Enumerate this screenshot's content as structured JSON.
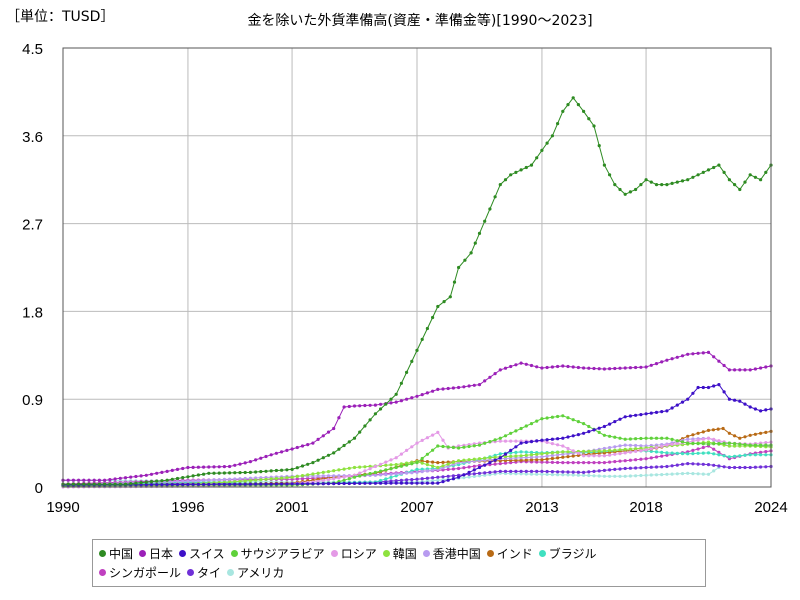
{
  "unit": "［単位：TUSD］",
  "chart_data": {
    "type": "line",
    "title": "金を除いた外貨準備高(資産・準備金等)[1990～2023]",
    "xlabel": "",
    "ylabel": "TUSD",
    "xlim": [
      1990,
      2024
    ],
    "ylim": [
      0,
      4.5
    ],
    "xticks": [
      1990,
      1996,
      2001,
      2007,
      2013,
      2018,
      2024
    ],
    "yticks": [
      0,
      0.9,
      1.8,
      2.7,
      3.6,
      4.5
    ],
    "ytick_labels": [
      "0",
      "0.9",
      "1.8",
      "2.7",
      "3.6",
      "4.5"
    ],
    "grid": true,
    "legend_position": "bottom",
    "series": [
      {
        "name": "中国",
        "color": "#2e8b22",
        "points": [
          [
            1990,
            0.03
          ],
          [
            1993,
            0.03
          ],
          [
            1995,
            0.07
          ],
          [
            1997,
            0.14
          ],
          [
            1999,
            0.15
          ],
          [
            2001,
            0.18
          ],
          [
            2002,
            0.25
          ],
          [
            2003,
            0.35
          ],
          [
            2004,
            0.5
          ],
          [
            2005,
            0.75
          ],
          [
            2006,
            0.95
          ],
          [
            2007,
            1.4
          ],
          [
            2008,
            1.85
          ],
          [
            2008.6,
            1.95
          ],
          [
            2009,
            2.25
          ],
          [
            2009.6,
            2.4
          ],
          [
            2010,
            2.6
          ],
          [
            2011,
            3.1
          ],
          [
            2011.5,
            3.2
          ],
          [
            2012,
            3.25
          ],
          [
            2012.5,
            3.3
          ],
          [
            2013,
            3.45
          ],
          [
            2013.5,
            3.6
          ],
          [
            2014,
            3.85
          ],
          [
            2014.5,
            3.99
          ],
          [
            2015,
            3.85
          ],
          [
            2015.5,
            3.7
          ],
          [
            2016,
            3.3
          ],
          [
            2016.5,
            3.1
          ],
          [
            2017,
            3.0
          ],
          [
            2017.5,
            3.05
          ],
          [
            2018,
            3.15
          ],
          [
            2018.5,
            3.1
          ],
          [
            2019,
            3.1
          ],
          [
            2020,
            3.15
          ],
          [
            2021,
            3.25
          ],
          [
            2021.5,
            3.3
          ],
          [
            2022,
            3.15
          ],
          [
            2022.5,
            3.05
          ],
          [
            2023,
            3.2
          ],
          [
            2023.5,
            3.15
          ],
          [
            2024,
            3.3
          ]
        ]
      },
      {
        "name": "日本",
        "color": "#9b20b8",
        "points": [
          [
            1990,
            0.07
          ],
          [
            1992,
            0.07
          ],
          [
            1994,
            0.12
          ],
          [
            1996,
            0.2
          ],
          [
            1998,
            0.21
          ],
          [
            1999,
            0.26
          ],
          [
            2000,
            0.33
          ],
          [
            2001,
            0.39
          ],
          [
            2002,
            0.45
          ],
          [
            2003,
            0.6
          ],
          [
            2003.5,
            0.82
          ],
          [
            2004,
            0.83
          ],
          [
            2005,
            0.84
          ],
          [
            2006,
            0.87
          ],
          [
            2007,
            0.93
          ],
          [
            2008,
            1.0
          ],
          [
            2009,
            1.02
          ],
          [
            2010,
            1.05
          ],
          [
            2011,
            1.2
          ],
          [
            2012,
            1.27
          ],
          [
            2013,
            1.22
          ],
          [
            2014,
            1.24
          ],
          [
            2015,
            1.22
          ],
          [
            2016,
            1.21
          ],
          [
            2017,
            1.22
          ],
          [
            2018,
            1.23
          ],
          [
            2019,
            1.3
          ],
          [
            2020,
            1.36
          ],
          [
            2021,
            1.38
          ],
          [
            2022,
            1.2
          ],
          [
            2023,
            1.2
          ],
          [
            2024,
            1.24
          ]
        ]
      },
      {
        "name": "スイス",
        "color": "#3d10c8",
        "points": [
          [
            1990,
            0.02
          ],
          [
            2000,
            0.03
          ],
          [
            2006,
            0.04
          ],
          [
            2008,
            0.04
          ],
          [
            2009,
            0.1
          ],
          [
            2010,
            0.2
          ],
          [
            2011,
            0.3
          ],
          [
            2012,
            0.45
          ],
          [
            2013,
            0.48
          ],
          [
            2014,
            0.5
          ],
          [
            2015,
            0.55
          ],
          [
            2016,
            0.62
          ],
          [
            2017,
            0.72
          ],
          [
            2018,
            0.75
          ],
          [
            2019,
            0.78
          ],
          [
            2020,
            0.9
          ],
          [
            2020.5,
            1.02
          ],
          [
            2021,
            1.02
          ],
          [
            2021.5,
            1.05
          ],
          [
            2022,
            0.9
          ],
          [
            2022.5,
            0.88
          ],
          [
            2023,
            0.82
          ],
          [
            2023.5,
            0.78
          ],
          [
            2024,
            0.8
          ]
        ]
      },
      {
        "name": "サウジアラビア",
        "color": "#5fd13a",
        "points": [
          [
            1990,
            0.01
          ],
          [
            1996,
            0.02
          ],
          [
            2001,
            0.02
          ],
          [
            2003,
            0.04
          ],
          [
            2004,
            0.1
          ],
          [
            2005,
            0.15
          ],
          [
            2006,
            0.2
          ],
          [
            2007,
            0.25
          ],
          [
            2008,
            0.42
          ],
          [
            2009,
            0.4
          ],
          [
            2010,
            0.43
          ],
          [
            2011,
            0.5
          ],
          [
            2012,
            0.6
          ],
          [
            2013,
            0.7
          ],
          [
            2014,
            0.73
          ],
          [
            2015,
            0.65
          ],
          [
            2016,
            0.53
          ],
          [
            2017,
            0.49
          ],
          [
            2018,
            0.5
          ],
          [
            2019,
            0.5
          ],
          [
            2020,
            0.45
          ],
          [
            2021,
            0.44
          ],
          [
            2022,
            0.45
          ],
          [
            2023,
            0.43
          ],
          [
            2024,
            0.43
          ]
        ]
      },
      {
        "name": "ロシア",
        "color": "#e49ae6",
        "points": [
          [
            1990,
            0.0
          ],
          [
            1998,
            0.01
          ],
          [
            2000,
            0.02
          ],
          [
            2002,
            0.05
          ],
          [
            2004,
            0.12
          ],
          [
            2006,
            0.3
          ],
          [
            2007,
            0.45
          ],
          [
            2008,
            0.56
          ],
          [
            2008.5,
            0.4
          ],
          [
            2009,
            0.42
          ],
          [
            2010,
            0.45
          ],
          [
            2011,
            0.47
          ],
          [
            2012,
            0.47
          ],
          [
            2013,
            0.47
          ],
          [
            2014,
            0.42
          ],
          [
            2015,
            0.32
          ],
          [
            2016,
            0.32
          ],
          [
            2017,
            0.35
          ],
          [
            2018,
            0.38
          ],
          [
            2019,
            0.43
          ],
          [
            2020,
            0.46
          ],
          [
            2021,
            0.5
          ],
          [
            2022,
            0.45
          ],
          [
            2023,
            0.44
          ],
          [
            2024,
            0.46
          ]
        ]
      },
      {
        "name": "韓国",
        "color": "#8ee23f",
        "points": [
          [
            1990,
            0.02
          ],
          [
            1996,
            0.03
          ],
          [
            1998,
            0.05
          ],
          [
            2001,
            0.1
          ],
          [
            2004,
            0.2
          ],
          [
            2006,
            0.23
          ],
          [
            2007,
            0.26
          ],
          [
            2008,
            0.2
          ],
          [
            2009,
            0.27
          ],
          [
            2010,
            0.29
          ],
          [
            2011,
            0.31
          ],
          [
            2012,
            0.32
          ],
          [
            2014,
            0.36
          ],
          [
            2016,
            0.37
          ],
          [
            2018,
            0.4
          ],
          [
            2020,
            0.44
          ],
          [
            2021,
            0.46
          ],
          [
            2022,
            0.42
          ],
          [
            2023,
            0.42
          ],
          [
            2024,
            0.41
          ]
        ]
      },
      {
        "name": "香港中国",
        "color": "#b89bf0",
        "points": [
          [
            1990,
            0.02
          ],
          [
            1996,
            0.06
          ],
          [
            2001,
            0.11
          ],
          [
            2005,
            0.12
          ],
          [
            2007,
            0.15
          ],
          [
            2008,
            0.18
          ],
          [
            2009,
            0.25
          ],
          [
            2011,
            0.29
          ],
          [
            2013,
            0.31
          ],
          [
            2015,
            0.36
          ],
          [
            2017,
            0.43
          ],
          [
            2018,
            0.42
          ],
          [
            2019,
            0.44
          ],
          [
            2020,
            0.49
          ],
          [
            2021,
            0.5
          ],
          [
            2022,
            0.42
          ],
          [
            2023,
            0.42
          ],
          [
            2024,
            0.42
          ]
        ]
      },
      {
        "name": "インド",
        "color": "#b86a15",
        "points": [
          [
            1990,
            0.01
          ],
          [
            1996,
            0.02
          ],
          [
            2001,
            0.04
          ],
          [
            2003,
            0.1
          ],
          [
            2005,
            0.14
          ],
          [
            2007,
            0.27
          ],
          [
            2008,
            0.25
          ],
          [
            2009,
            0.26
          ],
          [
            2011,
            0.27
          ],
          [
            2013,
            0.28
          ],
          [
            2015,
            0.33
          ],
          [
            2017,
            0.37
          ],
          [
            2018,
            0.38
          ],
          [
            2019,
            0.42
          ],
          [
            2020,
            0.52
          ],
          [
            2021,
            0.58
          ],
          [
            2021.7,
            0.6
          ],
          [
            2022,
            0.55
          ],
          [
            2022.5,
            0.5
          ],
          [
            2023,
            0.53
          ],
          [
            2024,
            0.57
          ]
        ]
      },
      {
        "name": "ブラジル",
        "color": "#40e0c0",
        "points": [
          [
            1990,
            0.01
          ],
          [
            1996,
            0.05
          ],
          [
            2001,
            0.03
          ],
          [
            2005,
            0.05
          ],
          [
            2007,
            0.18
          ],
          [
            2008,
            0.19
          ],
          [
            2009,
            0.23
          ],
          [
            2010,
            0.28
          ],
          [
            2011,
            0.34
          ],
          [
            2012,
            0.36
          ],
          [
            2013,
            0.35
          ],
          [
            2014,
            0.36
          ],
          [
            2015,
            0.35
          ],
          [
            2016,
            0.36
          ],
          [
            2017,
            0.37
          ],
          [
            2018,
            0.37
          ],
          [
            2019,
            0.35
          ],
          [
            2020,
            0.34
          ],
          [
            2021,
            0.35
          ],
          [
            2022,
            0.31
          ],
          [
            2023,
            0.33
          ],
          [
            2024,
            0.33
          ]
        ]
      },
      {
        "name": "シンガポール",
        "color": "#c040c0",
        "points": [
          [
            1990,
            0.03
          ],
          [
            1996,
            0.07
          ],
          [
            2001,
            0.08
          ],
          [
            2004,
            0.11
          ],
          [
            2007,
            0.16
          ],
          [
            2008,
            0.17
          ],
          [
            2009,
            0.19
          ],
          [
            2010,
            0.22
          ],
          [
            2012,
            0.26
          ],
          [
            2014,
            0.25
          ],
          [
            2016,
            0.25
          ],
          [
            2018,
            0.29
          ],
          [
            2020,
            0.36
          ],
          [
            2021,
            0.42
          ],
          [
            2022,
            0.29
          ],
          [
            2023,
            0.34
          ],
          [
            2024,
            0.37
          ]
        ]
      },
      {
        "name": "タイ",
        "color": "#7030d8",
        "points": [
          [
            1990,
            0.01
          ],
          [
            1996,
            0.04
          ],
          [
            2001,
            0.03
          ],
          [
            2005,
            0.05
          ],
          [
            2007,
            0.08
          ],
          [
            2009,
            0.12
          ],
          [
            2011,
            0.16
          ],
          [
            2013,
            0.16
          ],
          [
            2015,
            0.15
          ],
          [
            2017,
            0.19
          ],
          [
            2019,
            0.21
          ],
          [
            2020,
            0.24
          ],
          [
            2021,
            0.23
          ],
          [
            2022,
            0.2
          ],
          [
            2023,
            0.2
          ],
          [
            2024,
            0.21
          ]
        ]
      },
      {
        "name": "アメリカ",
        "color": "#a8e6e0",
        "points": [
          [
            1990,
            0.07
          ],
          [
            1996,
            0.06
          ],
          [
            2001,
            0.05
          ],
          [
            2005,
            0.05
          ],
          [
            2007,
            0.05
          ],
          [
            2009,
            0.09
          ],
          [
            2011,
            0.14
          ],
          [
            2013,
            0.13
          ],
          [
            2015,
            0.12
          ],
          [
            2016,
            0.11
          ],
          [
            2017,
            0.11
          ],
          [
            2018,
            0.12
          ],
          [
            2019,
            0.13
          ],
          [
            2020,
            0.14
          ],
          [
            2021,
            0.13
          ],
          [
            2021.5,
            0.2
          ]
        ]
      }
    ]
  }
}
